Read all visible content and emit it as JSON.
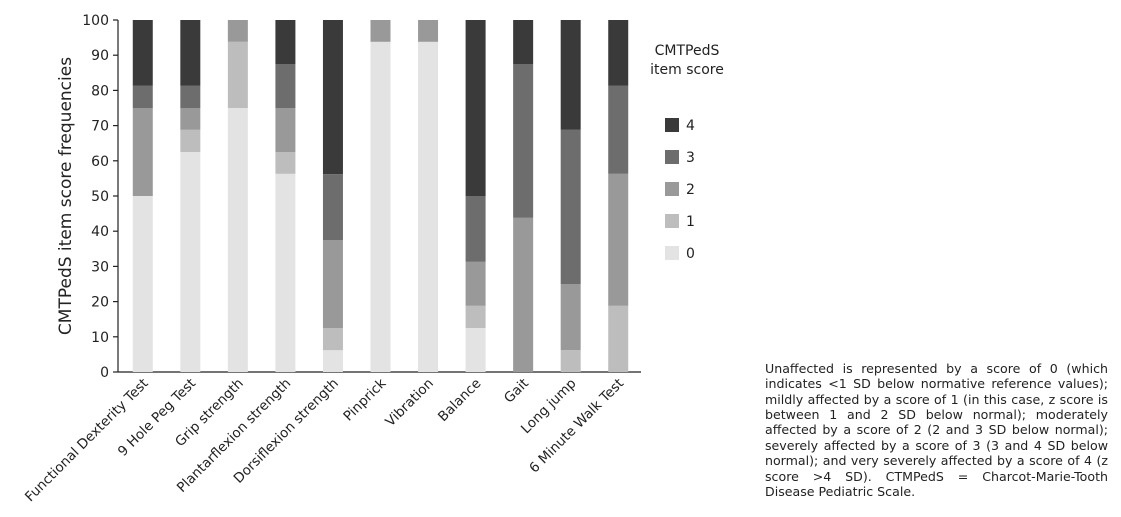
{
  "chart_data": {
    "type": "bar",
    "stacked": true,
    "categories": [
      "Functional Dexterity Test",
      "9 Hole Peg Test",
      "Grip strength",
      "Plantarflexion strength",
      "Dorsiflexion strength",
      "Pinprick",
      "Vibration",
      "Balance",
      "Gait",
      "Long jump",
      "6 Minute Walk Test"
    ],
    "series": [
      {
        "name": "0",
        "color": "#e3e3e3",
        "values": [
          50,
          62.5,
          75,
          56.3,
          6.2,
          93.8,
          93.8,
          12.5,
          0,
          0,
          0
        ]
      },
      {
        "name": "1",
        "color": "#bdbdbd",
        "values": [
          0,
          6.3,
          18.8,
          6.2,
          6.3,
          0,
          0,
          6.3,
          0,
          6.2,
          18.8
        ]
      },
      {
        "name": "2",
        "color": "#999999",
        "values": [
          25,
          6.2,
          6.2,
          12.5,
          25,
          6.2,
          6.2,
          12.5,
          43.8,
          18.8,
          37.5
        ]
      },
      {
        "name": "3",
        "color": "#6d6d6d",
        "values": [
          6.3,
          6.3,
          0,
          12.5,
          18.7,
          0,
          0,
          18.7,
          43.7,
          43.8,
          25
        ]
      },
      {
        "name": "4",
        "color": "#3a3a3a",
        "values": [
          18.7,
          18.7,
          0,
          12.5,
          43.8,
          0,
          0,
          50,
          12.5,
          31.2,
          18.7
        ]
      }
    ],
    "ylabel": "CMTPedS item score frequencies",
    "ylim": [
      0,
      100
    ],
    "yticks": [
      0,
      10,
      20,
      30,
      40,
      50,
      60,
      70,
      80,
      90,
      100
    ],
    "legend_title": [
      "CMTPedS",
      "item score"
    ],
    "legend_position": "right",
    "grid": false
  },
  "caption": {
    "text": "Unaffected is represented by a score of 0 (which indicates <1 SD below normative reference val­ues); mildly affected by a score of 1 (in this case, z score is between 1 and 2 SD below normal); moderately affected by a score of 2 (2 and 3 SD below normal); severely affected by a score of 3 (3 and 4 SD below normal); and very severely af­fected by a score of 4 (z score >4 SD). CTMPedS = Charcot-Marie-Tooth Disease Pediatric Scale."
  }
}
